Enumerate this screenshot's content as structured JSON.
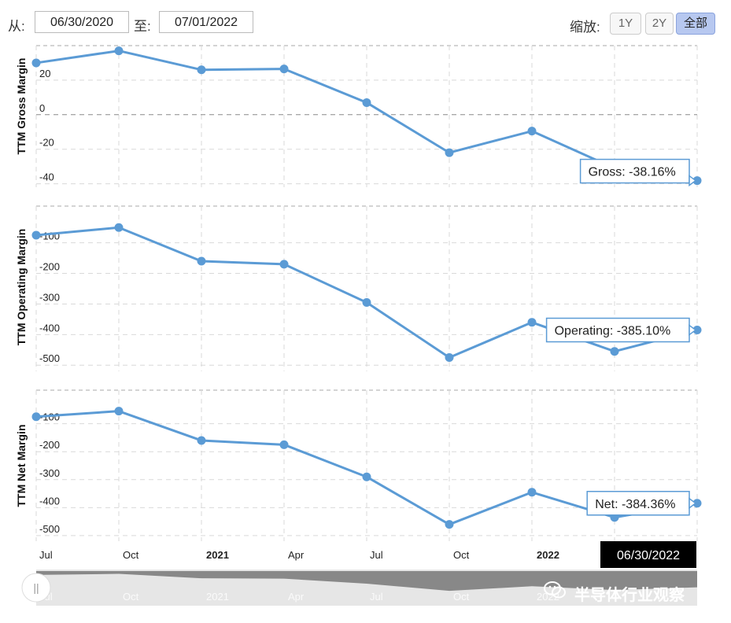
{
  "controls": {
    "from_label": "从:",
    "from_date": "06/30/2020",
    "to_label": "至:",
    "to_date": "07/01/2022",
    "zoom_label": "缩放:",
    "zoom_buttons": [
      "1Y",
      "2Y",
      "全部"
    ],
    "active_zoom": "全部"
  },
  "colors": {
    "line": "#5b9bd5",
    "grid": "#d9d9d9",
    "zero_line": "#888888",
    "navigator_fill": "#888888",
    "navigator_bg": "#e6e6e6",
    "crosshair_label_bg": "#000000"
  },
  "chart_data": [
    {
      "type": "line",
      "ylabel": "TTM Gross Margin",
      "series": [
        {
          "name": "Gross",
          "values": [
            30,
            37,
            26,
            26.5,
            7,
            -22,
            -9.5,
            -31,
            -38.16
          ]
        }
      ],
      "x": [
        "2020-06-30",
        "2020-09-30",
        "2020-12-31",
        "2021-03-31",
        "2021-06-30",
        "2021-09-30",
        "2021-12-31",
        "2022-03-31",
        "2022-06-30"
      ],
      "yticks": [
        20,
        0,
        -20,
        -40
      ],
      "ylim": [
        -42,
        40
      ],
      "zero_line": true,
      "tooltip": "Gross: -38.16%"
    },
    {
      "type": "line",
      "ylabel": "TTM Operating Margin",
      "series": [
        {
          "name": "Operating",
          "values": [
            -75,
            -50,
            -160,
            -170,
            -295,
            -475,
            -360,
            -455,
            -385.1
          ]
        }
      ],
      "x": [
        "2020-06-30",
        "2020-09-30",
        "2020-12-31",
        "2021-03-31",
        "2021-06-30",
        "2021-09-30",
        "2021-12-31",
        "2022-03-31",
        "2022-06-30"
      ],
      "yticks": [
        -100,
        -200,
        -300,
        -400,
        -500
      ],
      "ylim": [
        -520,
        20
      ],
      "tooltip": "Operating: -385.10%"
    },
    {
      "type": "line",
      "ylabel": "TTM Net Margin",
      "series": [
        {
          "name": "Net",
          "values": [
            -75,
            -55,
            -160,
            -175,
            -290,
            -460,
            -345,
            -435,
            -384.36
          ]
        }
      ],
      "x": [
        "2020-06-30",
        "2020-09-30",
        "2020-12-31",
        "2021-03-31",
        "2021-06-30",
        "2021-09-30",
        "2021-12-31",
        "2022-03-31",
        "2022-06-30"
      ],
      "yticks": [
        -100,
        -200,
        -300,
        -400,
        -500
      ],
      "ylim": [
        -520,
        20
      ],
      "tooltip": "Net: -384.36%"
    }
  ],
  "x_axis": {
    "tick_labels": [
      "Jul",
      "Oct",
      "2021",
      "Apr",
      "Jul",
      "Oct",
      "2022"
    ],
    "bold_labels": [
      "2021",
      "2022"
    ],
    "crosshair_label": "06/30/2022"
  },
  "navigator": {
    "tick_labels": [
      "Jul",
      "Oct",
      "2021",
      "Apr",
      "Jul",
      "Oct",
      "2022"
    ],
    "handle_glyph": "||"
  },
  "watermark": {
    "text": "半导体行业观察"
  }
}
